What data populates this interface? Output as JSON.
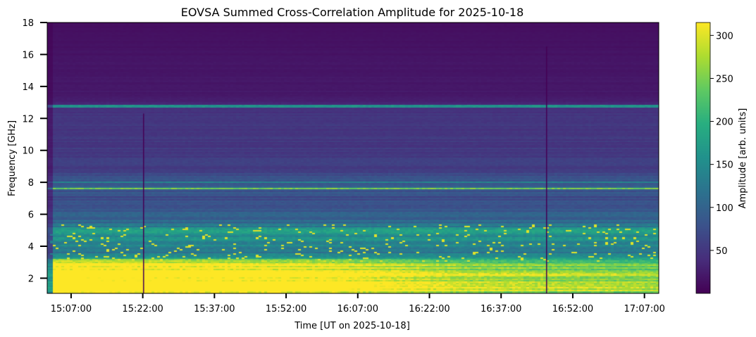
{
  "chart_data": {
    "type": "heatmap",
    "title": "EOVSA Summed Cross-Correlation Amplitude for 2025-10-18",
    "xlabel": "Time [UT on 2025-10-18]",
    "ylabel": "Frequency [GHz]",
    "colorbar_label": "Amplitude [arb. units]",
    "colormap": "viridis",
    "colormap_stops": [
      "#440154",
      "#472d7b",
      "#3b528b",
      "#2c728e",
      "#21918c",
      "#28ae80",
      "#5ec962",
      "#addc30",
      "#fde725"
    ],
    "x_range": [
      "15:02:00",
      "17:10:00"
    ],
    "x_ticks": [
      "15:07:00",
      "15:22:00",
      "15:37:00",
      "15:52:00",
      "16:07:00",
      "16:22:00",
      "16:37:00",
      "16:52:00",
      "17:07:00"
    ],
    "ylim": [
      1.05,
      18
    ],
    "y_ticks": [
      2,
      4,
      6,
      8,
      10,
      12,
      14,
      16,
      18
    ],
    "clim": [
      0,
      315
    ],
    "colorbar_ticks": [
      50,
      100,
      150,
      200,
      250,
      300
    ],
    "frequency_profile": [
      {
        "freq_ghz": 1.2,
        "amplitude": 330
      },
      {
        "freq_ghz": 2.0,
        "amplitude": 320
      },
      {
        "freq_ghz": 2.7,
        "amplitude": 300
      },
      {
        "freq_ghz": 3.2,
        "amplitude": 190
      },
      {
        "freq_ghz": 3.6,
        "amplitude": 120
      },
      {
        "freq_ghz": 4.4,
        "amplitude": 150
      },
      {
        "freq_ghz": 5.0,
        "amplitude": 160
      },
      {
        "freq_ghz": 5.4,
        "amplitude": 110
      },
      {
        "freq_ghz": 7.0,
        "amplitude": 70
      },
      {
        "freq_ghz": 7.7,
        "amplitude": 95
      },
      {
        "freq_ghz": 9.0,
        "amplitude": 55
      },
      {
        "freq_ghz": 12.7,
        "amplitude": 45
      },
      {
        "freq_ghz": 13.2,
        "amplitude": 22
      },
      {
        "freq_ghz": 18.0,
        "amplitude": 12
      }
    ],
    "low_band_time_trend": [
      {
        "time": "15:02:00",
        "factor": 1.15
      },
      {
        "time": "16:00:00",
        "factor": 1.05
      },
      {
        "time": "16:30:00",
        "factor": 0.88
      },
      {
        "time": "17:10:00",
        "factor": 0.82
      }
    ],
    "bright_lines": [
      {
        "freq_ghz": 7.6,
        "amplitude": 250
      },
      {
        "freq_ghz": 12.75,
        "amplitude": 160
      },
      {
        "freq_ghz": 7.95,
        "amplitude": 140
      }
    ],
    "dropouts": [
      {
        "time": "15:22:00",
        "freq_range": [
          1.05,
          12.3
        ]
      },
      {
        "time": "16:46:20",
        "freq_range": [
          1.05,
          16.5
        ]
      }
    ]
  }
}
